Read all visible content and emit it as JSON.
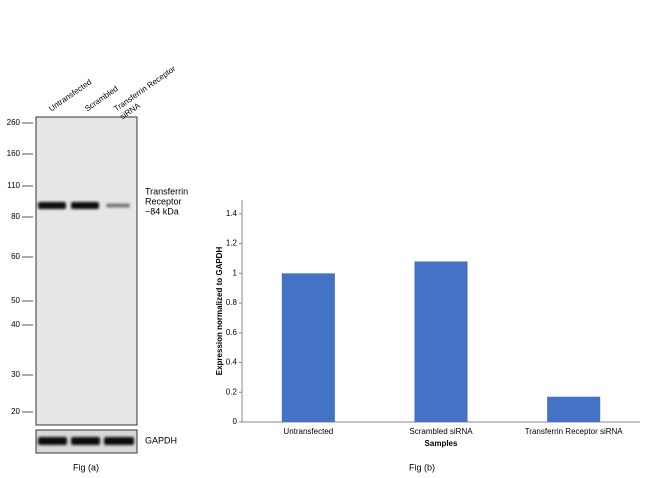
{
  "blot": {
    "lanes": [
      {
        "lines": [
          "Untransfected"
        ]
      },
      {
        "lines": [
          "Scrambled"
        ]
      },
      {
        "lines": [
          "Transferrin Receptor",
          "siRNA"
        ]
      }
    ],
    "markers": [
      260,
      160,
      110,
      80,
      60,
      50,
      40,
      30,
      20
    ],
    "target_label": [
      "Transferrin",
      "Receptor",
      "~84 kDa"
    ],
    "control_label": "GAPDH",
    "caption": "Fig (a)"
  },
  "chart_data": {
    "type": "bar",
    "caption": "Fig (b)",
    "x_label": "Samples",
    "y_label": "Expression  normalized to GAPDH",
    "categories": [
      "Untransfected",
      "Scrambled siRNA",
      "Transferrin Receptor siRNA"
    ],
    "values": [
      1.0,
      1.08,
      0.17
    ],
    "color": "#4472c4",
    "ylim": [
      0,
      1.5
    ],
    "yticks": [
      0,
      0.2,
      0.4,
      0.6,
      0.8,
      1,
      1.2,
      1.4
    ]
  }
}
